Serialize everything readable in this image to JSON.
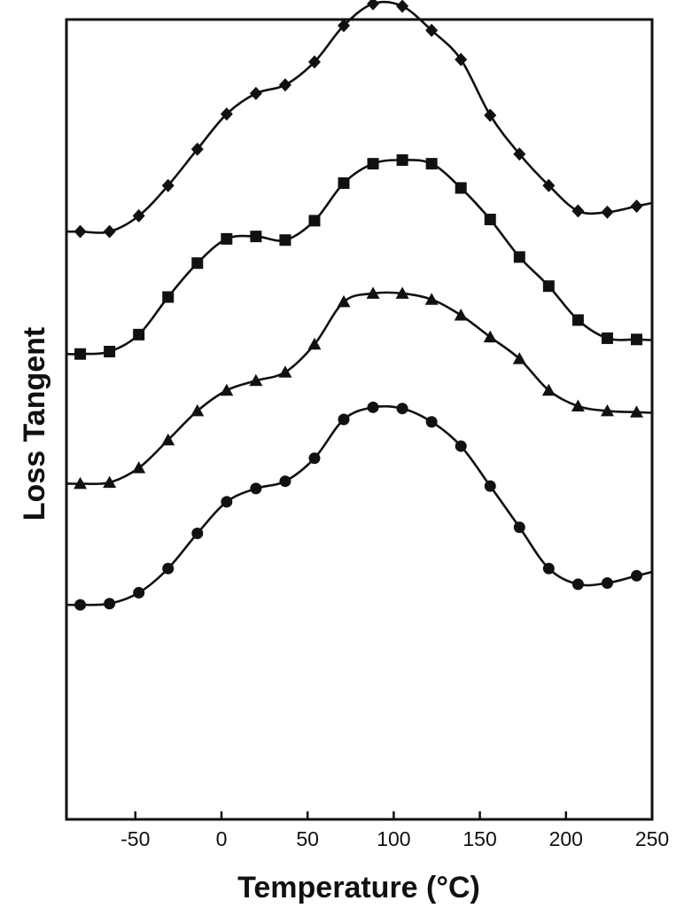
{
  "chart_data": {
    "type": "line",
    "title": "",
    "xlabel": "Temperature (°C)",
    "ylabel": "Loss Tangent",
    "xlim": [
      -90,
      250
    ],
    "ylim": [
      0,
      6.6
    ],
    "x_ticks": [
      "-50",
      "0",
      "50",
      "100",
      "150",
      "200",
      "250"
    ],
    "y_ticks": [],
    "grid": false,
    "legend": "none",
    "line_color": "#111111",
    "series": [
      {
        "marker": "diamond",
        "x": [
          -82,
          -65,
          -48,
          -31,
          -14,
          3,
          20,
          37,
          54,
          71,
          88,
          105,
          122,
          139,
          156,
          173,
          190,
          207,
          224,
          241
        ],
        "y": [
          4.85,
          4.85,
          4.98,
          5.23,
          5.53,
          5.82,
          5.99,
          6.06,
          6.25,
          6.55,
          6.73,
          6.71,
          6.51,
          6.27,
          5.81,
          5.49,
          5.23,
          5.02,
          5.01,
          5.06
        ]
      },
      {
        "marker": "square",
        "x": [
          -82,
          -65,
          -48,
          -31,
          -14,
          3,
          20,
          37,
          54,
          71,
          88,
          105,
          122,
          139,
          156,
          173,
          190,
          207,
          224,
          241
        ],
        "y": [
          3.84,
          3.86,
          4.0,
          4.31,
          4.59,
          4.79,
          4.81,
          4.78,
          4.94,
          5.25,
          5.41,
          5.44,
          5.41,
          5.21,
          4.95,
          4.64,
          4.4,
          4.12,
          3.97,
          3.96
        ]
      },
      {
        "marker": "triangle",
        "x": [
          -82,
          -65,
          -48,
          -31,
          -14,
          3,
          20,
          37,
          54,
          71,
          88,
          105,
          122,
          139,
          156,
          173,
          190,
          207,
          224,
          241
        ],
        "y": [
          2.77,
          2.78,
          2.9,
          3.13,
          3.37,
          3.54,
          3.62,
          3.69,
          3.92,
          4.27,
          4.34,
          4.34,
          4.29,
          4.16,
          3.98,
          3.8,
          3.54,
          3.41,
          3.37,
          3.36
        ]
      },
      {
        "marker": "circle",
        "x": [
          -82,
          -65,
          -48,
          -31,
          -14,
          3,
          20,
          37,
          54,
          71,
          88,
          105,
          122,
          139,
          156,
          173,
          190,
          207,
          224,
          241
        ],
        "y": [
          1.77,
          1.78,
          1.87,
          2.07,
          2.36,
          2.62,
          2.73,
          2.79,
          2.98,
          3.3,
          3.4,
          3.39,
          3.28,
          3.08,
          2.75,
          2.41,
          2.07,
          1.94,
          1.95,
          2.01
        ]
      }
    ]
  }
}
